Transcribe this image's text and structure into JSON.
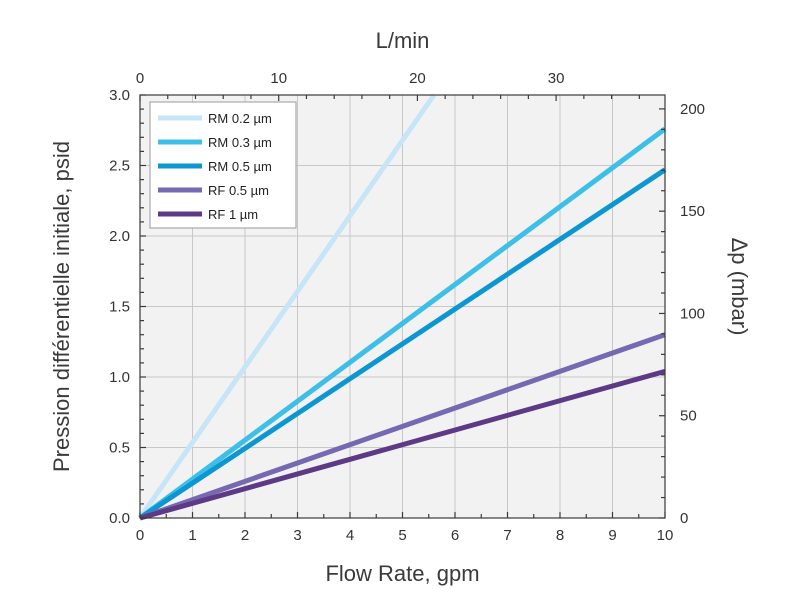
{
  "chart_data": {
    "type": "line",
    "title": "",
    "xlabel": "Flow Rate, gpm",
    "ylabel": "Pression différentielle initiale, psid",
    "x2label": "L/min",
    "y2label": "Δp (mbar)",
    "xlim": [
      0,
      10
    ],
    "ylim": [
      0,
      3.0
    ],
    "x2lim": [
      0,
      37.85
    ],
    "y2lim": [
      0,
      206.8
    ],
    "xticks": [
      "0",
      "1",
      "2",
      "3",
      "4",
      "5",
      "6",
      "7",
      "8",
      "9",
      "10"
    ],
    "yticks": [
      "0.0",
      "0.5",
      "1.0",
      "1.5",
      "2.0",
      "2.5",
      "3.0"
    ],
    "x2ticks": [
      "0",
      "10",
      "20",
      "30"
    ],
    "y2ticks": [
      "0",
      "50",
      "100",
      "150",
      "200"
    ],
    "grid": true,
    "legend_position": "top-left",
    "series": [
      {
        "name": "RM 0.2 µm",
        "color": "#c6e6f7",
        "x": [
          0,
          5.6
        ],
        "y": [
          0,
          3.0
        ]
      },
      {
        "name": "RM 0.3 µm",
        "color": "#3ebfe8",
        "x": [
          0,
          10
        ],
        "y": [
          0,
          2.76
        ]
      },
      {
        "name": "RM 0.5 µm",
        "color": "#0c96d2",
        "x": [
          0,
          10
        ],
        "y": [
          0,
          2.47
        ]
      },
      {
        "name": "RF 0.5 µm",
        "color": "#7669b2",
        "x": [
          0,
          10
        ],
        "y": [
          0,
          1.3
        ]
      },
      {
        "name": "RF  1 µm",
        "color": "#5c3a86",
        "x": [
          0,
          10
        ],
        "y": [
          0,
          1.04
        ]
      }
    ]
  }
}
